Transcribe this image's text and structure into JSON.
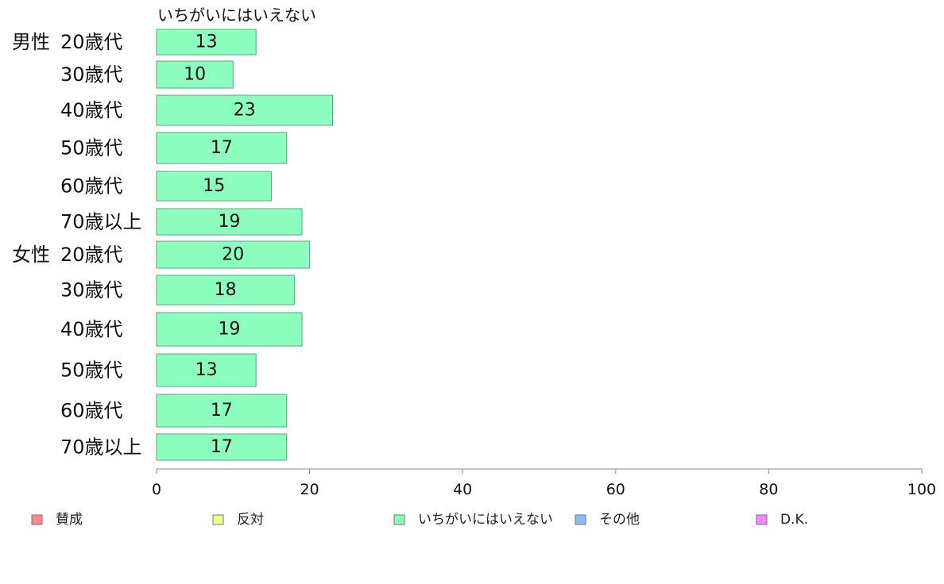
{
  "chart_data": {
    "type": "bar",
    "orientation": "horizontal",
    "series_label": "いちがいにはいえない",
    "bar_color": "#8cffbe",
    "bar_stroke": "#5aa47c",
    "groups": [
      "男性",
      "女性"
    ],
    "categories": [
      {
        "group": "男性",
        "label": "20歳代",
        "value": 13
      },
      {
        "group": "",
        "label": "30歳代",
        "value": 10
      },
      {
        "group": "",
        "label": "40歳代",
        "value": 23
      },
      {
        "group": "",
        "label": "50歳代",
        "value": 17
      },
      {
        "group": "",
        "label": "60歳代",
        "value": 15
      },
      {
        "group": "",
        "label": "70歳以上",
        "value": 19
      },
      {
        "group": "女性",
        "label": "20歳代",
        "value": 20
      },
      {
        "group": "",
        "label": "30歳代",
        "value": 18
      },
      {
        "group": "",
        "label": "40歳代",
        "value": 19
      },
      {
        "group": "",
        "label": "50歳代",
        "value": 13
      },
      {
        "group": "",
        "label": "60歳代",
        "value": 17
      },
      {
        "group": "",
        "label": "70歳以上",
        "value": 17
      }
    ],
    "xlim": [
      0,
      100
    ],
    "xticks": [
      "0",
      "20",
      "40",
      "60",
      "80",
      "100"
    ],
    "legend": [
      {
        "label": "賛成",
        "color": "#ff8888"
      },
      {
        "label": "反対",
        "color": "#eeff88"
      },
      {
        "label": "いちがいにはいえない",
        "color": "#88ffbb"
      },
      {
        "label": "その他",
        "color": "#88bbff"
      },
      {
        "label": "D.K.",
        "color": "#ee88ff"
      }
    ],
    "legend_position": "bottom",
    "grid": false
  }
}
